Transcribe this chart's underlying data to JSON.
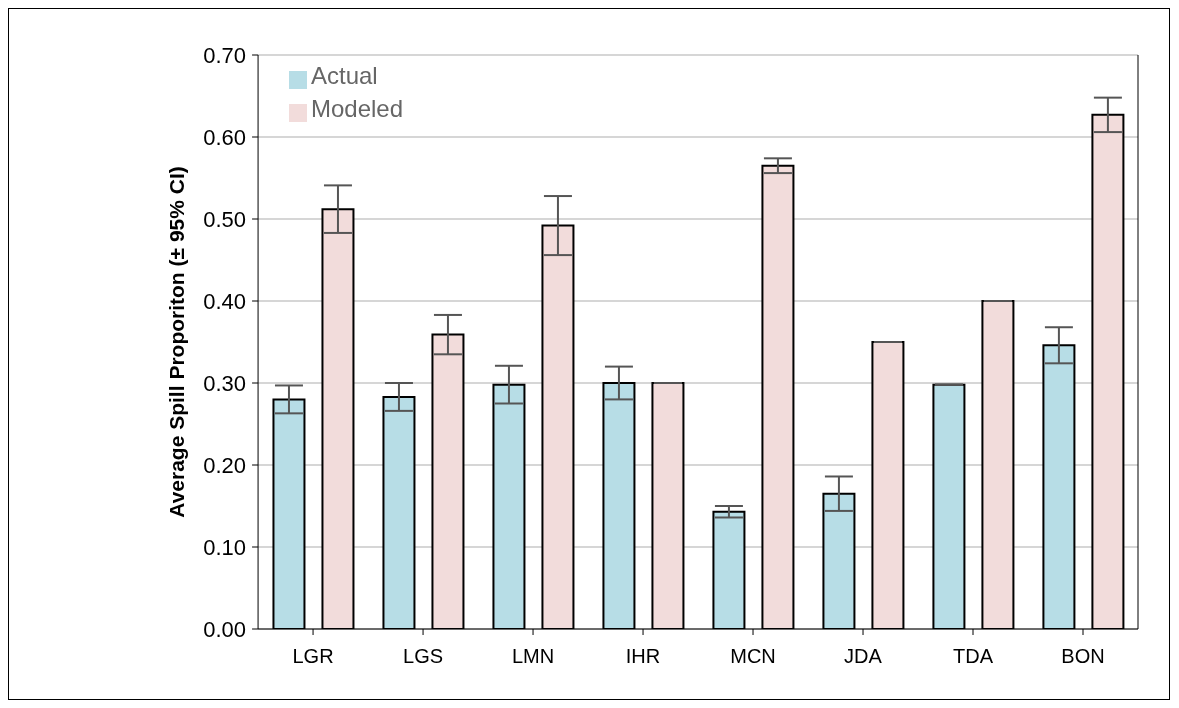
{
  "chart_data": {
    "type": "bar",
    "ylabel": "Average Spill Proporiton (± 95% CI)",
    "categories": [
      "LGR",
      "LGS",
      "LMN",
      "IHR",
      "MCN",
      "JDA",
      "TDA",
      "BON"
    ],
    "series": [
      {
        "name": "Actual",
        "color": "#b7dde6",
        "values": [
          0.28,
          0.283,
          0.298,
          0.3,
          0.143,
          0.165,
          0.298,
          0.346
        ],
        "errors": [
          0.017,
          0.017,
          0.023,
          0.02,
          0.007,
          0.021,
          null,
          0.022
        ]
      },
      {
        "name": "Modeled",
        "color": "#f2dcdb",
        "values": [
          0.512,
          0.359,
          0.492,
          0.3,
          0.565,
          0.35,
          0.4,
          0.627
        ],
        "errors": [
          0.029,
          0.024,
          0.036,
          null,
          0.009,
          null,
          null,
          0.021
        ]
      }
    ],
    "ylim": [
      0,
      0.7
    ],
    "yticks": [
      {
        "value": 0,
        "label": "0.00"
      },
      {
        "value": 0.1,
        "label": "0.10"
      },
      {
        "value": 0.2,
        "label": "0.20"
      },
      {
        "value": 0.3,
        "label": "0.30"
      },
      {
        "value": 0.4,
        "label": "0.40"
      },
      {
        "value": 0.5,
        "label": "0.50"
      },
      {
        "value": 0.6,
        "label": "0.60"
      },
      {
        "value": 0.7,
        "label": "0.70"
      }
    ],
    "grid": "y",
    "legend": "top left"
  }
}
